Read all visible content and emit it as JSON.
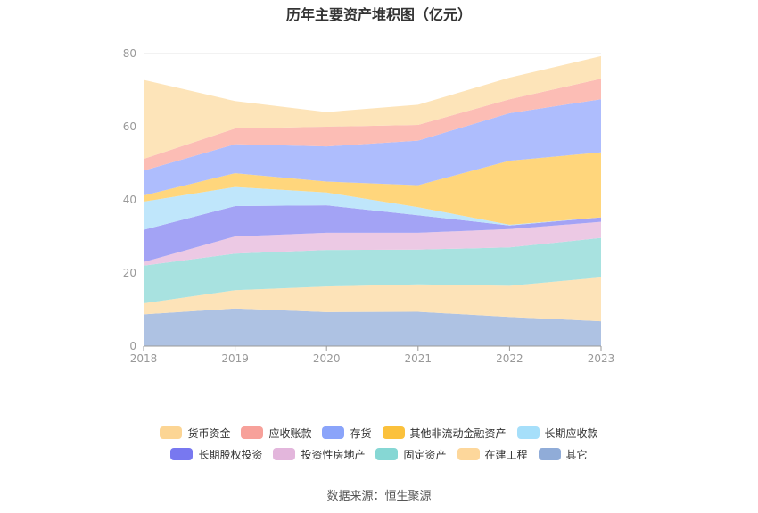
{
  "chart_data": {
    "type": "area",
    "stacked": true,
    "title": "历年主要资产堆积图（亿元）",
    "categories": [
      "2018",
      "2019",
      "2020",
      "2021",
      "2022",
      "2023"
    ],
    "ylim": [
      0,
      80
    ],
    "yticks": [
      0,
      20,
      40,
      60,
      80
    ],
    "series": [
      {
        "name": "其它",
        "color": "#aec2e3",
        "values": [
          8.7,
          10.3,
          9.3,
          9.4,
          8.0,
          6.8
        ]
      },
      {
        "name": "在建工程",
        "color": "#fde3b8",
        "values": [
          3.0,
          5.0,
          7.0,
          7.5,
          8.5,
          12.0
        ]
      },
      {
        "name": "固定资产",
        "color": "#a8e2e0",
        "values": [
          10.3,
          10.0,
          10.0,
          9.5,
          10.5,
          10.8
        ]
      },
      {
        "name": "投资性房地产",
        "color": "#ecc9e4",
        "values": [
          1.0,
          4.7,
          4.7,
          4.6,
          5.0,
          4.4
        ]
      },
      {
        "name": "长期股权投资",
        "color": "#a3a3f5",
        "values": [
          8.8,
          8.3,
          7.5,
          4.8,
          1.0,
          1.2
        ]
      },
      {
        "name": "长期应收款",
        "color": "#bfe6fb",
        "values": [
          7.7,
          5.2,
          3.5,
          2.2,
          0.2,
          0.0
        ]
      },
      {
        "name": "其他非流动金融资产",
        "color": "#ffd67c",
        "values": [
          1.7,
          3.8,
          3.0,
          6.0,
          17.5,
          17.8
        ]
      },
      {
        "name": "存货",
        "color": "#aebdfd",
        "values": [
          6.8,
          7.9,
          9.6,
          12.2,
          13.0,
          14.5
        ]
      },
      {
        "name": "应收账款",
        "color": "#fcbdb5",
        "values": [
          3.2,
          4.3,
          5.4,
          4.3,
          3.8,
          5.6
        ]
      },
      {
        "name": "货币资金",
        "color": "#fde4b9",
        "values": [
          21.6,
          7.5,
          4.0,
          5.5,
          5.9,
          6.2
        ]
      }
    ]
  },
  "legend": {
    "row1": [
      {
        "label": "货币资金",
        "color": "#fcd594"
      },
      {
        "label": "应收账款",
        "color": "#f7a19a"
      },
      {
        "label": "存货",
        "color": "#8aa4fa"
      },
      {
        "label": "其他非流动金融资产",
        "color": "#fbc13c"
      },
      {
        "label": "长期应收款",
        "color": "#a6dffa"
      }
    ],
    "row2": [
      {
        "label": "长期股权投资",
        "color": "#7878f0"
      },
      {
        "label": "投资性房地产",
        "color": "#e3b6dc"
      },
      {
        "label": "固定资产",
        "color": "#86d7d4"
      },
      {
        "label": "在建工程",
        "color": "#fdd79b"
      },
      {
        "label": "其它",
        "color": "#90acd8"
      }
    ]
  },
  "source": "数据来源：恒生聚源"
}
